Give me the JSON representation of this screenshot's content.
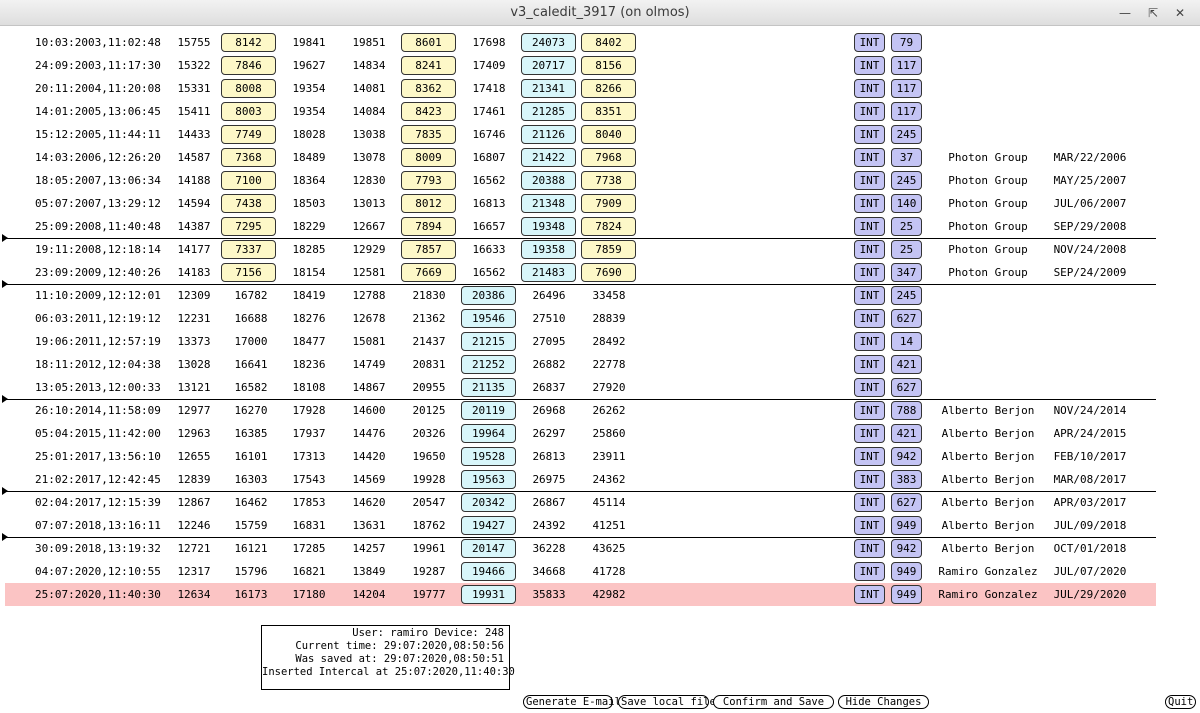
{
  "window": {
    "title": "v3_caledit_3917 (on olmos)"
  },
  "rows": [
    {
      "ts": "10:03:2003,11:02:48",
      "c1": "15755",
      "c2": "8142",
      "c3": "19841",
      "c4": "19851",
      "c5": "8601",
      "c6": "17698",
      "c7": "24073",
      "c8": "8402",
      "type": "INT",
      "code": "79",
      "user": "",
      "date": "",
      "variant": "A"
    },
    {
      "ts": "24:09:2003,11:17:30",
      "c1": "15322",
      "c2": "7846",
      "c3": "19627",
      "c4": "14834",
      "c5": "8241",
      "c6": "17409",
      "c7": "20717",
      "c8": "8156",
      "type": "INT",
      "code": "117",
      "user": "",
      "date": "",
      "variant": "A"
    },
    {
      "ts": "20:11:2004,11:20:08",
      "c1": "15331",
      "c2": "8008",
      "c3": "19354",
      "c4": "14081",
      "c5": "8362",
      "c6": "17418",
      "c7": "21341",
      "c8": "8266",
      "type": "INT",
      "code": "117",
      "user": "",
      "date": "",
      "variant": "A"
    },
    {
      "ts": "14:01:2005,13:06:45",
      "c1": "15411",
      "c2": "8003",
      "c3": "19354",
      "c4": "14084",
      "c5": "8423",
      "c6": "17461",
      "c7": "21285",
      "c8": "8351",
      "type": "INT",
      "code": "117",
      "user": "",
      "date": "",
      "variant": "A"
    },
    {
      "ts": "15:12:2005,11:44:11",
      "c1": "14433",
      "c2": "7749",
      "c3": "18028",
      "c4": "13038",
      "c5": "7835",
      "c6": "16746",
      "c7": "21126",
      "c8": "8040",
      "type": "INT",
      "code": "245",
      "user": "",
      "date": "",
      "variant": "A"
    },
    {
      "ts": "14:03:2006,12:26:20",
      "c1": "14587",
      "c2": "7368",
      "c3": "18489",
      "c4": "13078",
      "c5": "8009",
      "c6": "16807",
      "c7": "21422",
      "c8": "7968",
      "type": "INT",
      "code": "37",
      "user": "Photon Group",
      "date": "MAR/22/2006",
      "variant": "A"
    },
    {
      "ts": "18:05:2007,13:06:34",
      "c1": "14188",
      "c2": "7100",
      "c3": "18364",
      "c4": "12830",
      "c5": "7793",
      "c6": "16562",
      "c7": "20388",
      "c8": "7738",
      "type": "INT",
      "code": "245",
      "user": "Photon Group",
      "date": "MAY/25/2007",
      "variant": "A"
    },
    {
      "ts": "05:07:2007,13:29:12",
      "c1": "14594",
      "c2": "7438",
      "c3": "18503",
      "c4": "13013",
      "c5": "8012",
      "c6": "16813",
      "c7": "21348",
      "c8": "7909",
      "type": "INT",
      "code": "140",
      "user": "Photon Group",
      "date": "JUL/06/2007",
      "variant": "A"
    },
    {
      "ts": "25:09:2008,11:40:48",
      "c1": "14387",
      "c2": "7295",
      "c3": "18229",
      "c4": "12667",
      "c5": "7894",
      "c6": "16657",
      "c7": "19348",
      "c8": "7824",
      "type": "INT",
      "code": "25",
      "user": "Photon Group",
      "date": "SEP/29/2008",
      "variant": "A"
    },
    {
      "ts": "19:11:2008,12:18:14",
      "c1": "14177",
      "c2": "7337",
      "c3": "18285",
      "c4": "12929",
      "c5": "7857",
      "c6": "16633",
      "c7": "19358",
      "c8": "7859",
      "type": "INT",
      "code": "25",
      "user": "Photon Group",
      "date": "NOV/24/2008",
      "variant": "A"
    },
    {
      "ts": "23:09:2009,12:40:26",
      "c1": "14183",
      "c2": "7156",
      "c3": "18154",
      "c4": "12581",
      "c5": "7669",
      "c6": "16562",
      "c7": "21483",
      "c8": "7690",
      "type": "INT",
      "code": "347",
      "user": "Photon Group",
      "date": "SEP/24/2009",
      "variant": "A"
    },
    {
      "ts": "11:10:2009,12:12:01",
      "c1": "12309",
      "c2": "16782",
      "c3": "18419",
      "c4": "12788",
      "c5": "21830",
      "c6": "20386",
      "c7": "26496",
      "c8": "33458",
      "type": "INT",
      "code": "245",
      "user": "",
      "date": "",
      "variant": "B"
    },
    {
      "ts": "06:03:2011,12:19:12",
      "c1": "12231",
      "c2": "16688",
      "c3": "18276",
      "c4": "12678",
      "c5": "21362",
      "c6": "19546",
      "c7": "27510",
      "c8": "28839",
      "type": "INT",
      "code": "627",
      "user": "",
      "date": "",
      "variant": "B"
    },
    {
      "ts": "19:06:2011,12:57:19",
      "c1": "13373",
      "c2": "17000",
      "c3": "18477",
      "c4": "15081",
      "c5": "21437",
      "c6": "21215",
      "c7": "27095",
      "c8": "28492",
      "type": "INT",
      "code": "14",
      "user": "",
      "date": "",
      "variant": "B"
    },
    {
      "ts": "18:11:2012,12:04:38",
      "c1": "13028",
      "c2": "16641",
      "c3": "18236",
      "c4": "14749",
      "c5": "20831",
      "c6": "21252",
      "c7": "26882",
      "c8": "22778",
      "type": "INT",
      "code": "421",
      "user": "",
      "date": "",
      "variant": "B"
    },
    {
      "ts": "13:05:2013,12:00:33",
      "c1": "13121",
      "c2": "16582",
      "c3": "18108",
      "c4": "14867",
      "c5": "20955",
      "c6": "21135",
      "c7": "26837",
      "c8": "27920",
      "type": "INT",
      "code": "627",
      "user": "",
      "date": "",
      "variant": "B"
    },
    {
      "ts": "26:10:2014,11:58:09",
      "c1": "12977",
      "c2": "16270",
      "c3": "17928",
      "c4": "14600",
      "c5": "20125",
      "c6": "20119",
      "c7": "26968",
      "c8": "26262",
      "type": "INT",
      "code": "788",
      "user": "Alberto Berjon",
      "date": "NOV/24/2014",
      "variant": "B"
    },
    {
      "ts": "05:04:2015,11:42:00",
      "c1": "12963",
      "c2": "16385",
      "c3": "17937",
      "c4": "14476",
      "c5": "20326",
      "c6": "19964",
      "c7": "26297",
      "c8": "25860",
      "type": "INT",
      "code": "421",
      "user": "Alberto Berjon",
      "date": "APR/24/2015",
      "variant": "B"
    },
    {
      "ts": "25:01:2017,13:56:10",
      "c1": "12655",
      "c2": "16101",
      "c3": "17313",
      "c4": "14420",
      "c5": "19650",
      "c6": "19528",
      "c7": "26813",
      "c8": "23911",
      "type": "INT",
      "code": "942",
      "user": "Alberto Berjon",
      "date": "FEB/10/2017",
      "variant": "B"
    },
    {
      "ts": "21:02:2017,12:42:45",
      "c1": "12839",
      "c2": "16303",
      "c3": "17543",
      "c4": "14569",
      "c5": "19928",
      "c6": "19563",
      "c7": "26975",
      "c8": "24362",
      "type": "INT",
      "code": "383",
      "user": "Alberto Berjon",
      "date": "MAR/08/2017",
      "variant": "B"
    },
    {
      "ts": "02:04:2017,12:15:39",
      "c1": "12867",
      "c2": "16462",
      "c3": "17853",
      "c4": "14620",
      "c5": "20547",
      "c6": "20342",
      "c7": "26867",
      "c8": "45114",
      "type": "INT",
      "code": "627",
      "user": "Alberto Berjon",
      "date": "APR/03/2017",
      "variant": "B"
    },
    {
      "ts": "07:07:2018,13:16:11",
      "c1": "12246",
      "c2": "15759",
      "c3": "16831",
      "c4": "13631",
      "c5": "18762",
      "c6": "19427",
      "c7": "24392",
      "c8": "41251",
      "type": "INT",
      "code": "949",
      "user": "Alberto Berjon",
      "date": "JUL/09/2018",
      "variant": "B"
    },
    {
      "ts": "30:09:2018,13:19:32",
      "c1": "12721",
      "c2": "16121",
      "c3": "17285",
      "c4": "14257",
      "c5": "19961",
      "c6": "20147",
      "c7": "36228",
      "c8": "43625",
      "type": "INT",
      "code": "942",
      "user": "Alberto Berjon",
      "date": "OCT/01/2018",
      "variant": "B"
    },
    {
      "ts": "04:07:2020,12:10:55",
      "c1": "12317",
      "c2": "15796",
      "c3": "16821",
      "c4": "13849",
      "c5": "19287",
      "c6": "19466",
      "c7": "34668",
      "c8": "41728",
      "type": "INT",
      "code": "949",
      "user": "Ramiro Gonzalez",
      "date": "JUL/07/2020",
      "variant": "B"
    },
    {
      "ts": "25:07:2020,11:40:30",
      "c1": "12634",
      "c2": "16173",
      "c3": "17180",
      "c4": "14204",
      "c5": "19777",
      "c6": "19931",
      "c7": "35833",
      "c8": "42982",
      "type": "INT",
      "code": "949",
      "user": "Ramiro Gonzalez",
      "date": "JUL/29/2020",
      "variant": "B",
      "highlight": true
    }
  ],
  "separators_after_rows": [
    8,
    10,
    15,
    19,
    21
  ],
  "info": {
    "line1": "User: ramiro Device: 248",
    "line2": "Current time: 29:07:2020,08:50:56",
    "line3": "Was saved at: 29:07:2020,08:50:51",
    "line4": "Inserted Intercal at 25:07:2020,11:40:30"
  },
  "buttons": {
    "generate": "Generate E-mail",
    "save_local": "Save local file",
    "confirm": "Confirm and Save",
    "hide": "Hide Changes",
    "quit": "Quit"
  },
  "colors": {
    "yellow_box": "#fdf8c8",
    "cyan_box": "#d8f6fa",
    "type_box": "#c4c4f4",
    "highlight_row": "#fbc4c4"
  }
}
